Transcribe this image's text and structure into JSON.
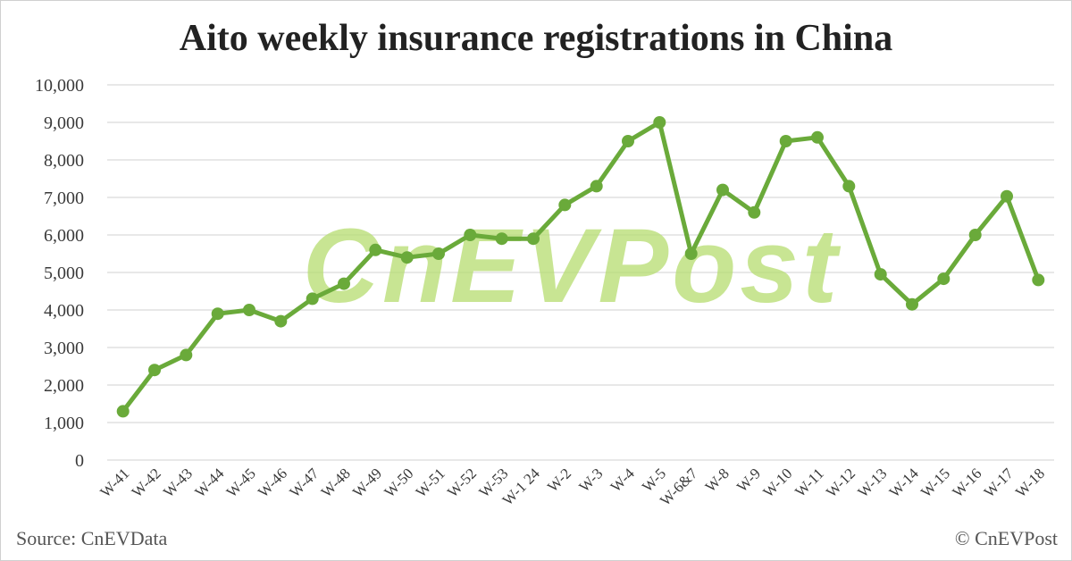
{
  "watermark_text": "CnEVPost",
  "source_text": "Source: CnEVData",
  "copyright_text": "© CnEVPost",
  "colors": {
    "line": "#6aaa3a",
    "marker": "#6aaa3a",
    "grid": "#d9d9d9",
    "watermark": "#b5dc6f"
  },
  "chart_data": {
    "type": "line",
    "title": "Aito weekly insurance registrations in China",
    "xlabel": "",
    "ylabel": "",
    "ylim": [
      0,
      10000
    ],
    "yticks": [
      0,
      1000,
      2000,
      3000,
      4000,
      5000,
      6000,
      7000,
      8000,
      9000,
      10000
    ],
    "ytick_labels": [
      "0",
      "1,000",
      "2,000",
      "3,000",
      "4,000",
      "5,000",
      "6,000",
      "7,000",
      "8,000",
      "9,000",
      "10,000"
    ],
    "grid": true,
    "legend": "none",
    "categories": [
      "W-41",
      "W-42",
      "W-43",
      "W-44",
      "W-45",
      "W-46",
      "W-47",
      "W-48",
      "W-49",
      "W-50",
      "W-51",
      "W-52",
      "W-53",
      "W-1 24",
      "W-2",
      "W-3",
      "W-4",
      "W-5",
      "W-6&7",
      "W-8",
      "W-9",
      "W-10",
      "W-11",
      "W-12",
      "W-13",
      "W-14",
      "W-15",
      "W-16",
      "W-17",
      "W-18"
    ],
    "series": [
      {
        "values": [
          1300,
          2400,
          2800,
          3900,
          4000,
          3700,
          4300,
          4700,
          5600,
          5400,
          5500,
          6000,
          5900,
          5900,
          6800,
          7300,
          8500,
          9000,
          5500,
          7200,
          6600,
          8500,
          8600,
          7300,
          4950,
          4150,
          4830,
          6000,
          7030,
          4800
        ]
      }
    ]
  }
}
